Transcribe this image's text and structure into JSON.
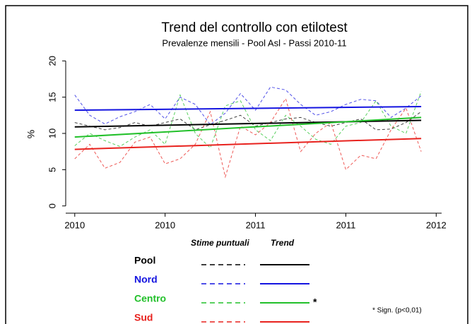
{
  "chart_data": {
    "type": "line",
    "title": "Trend del controllo con etilotest",
    "subtitle": "Prevalenze mensili - Pool Asl - Passi 2010-11",
    "y_label": "%",
    "x": [
      2010,
      2010.083,
      2010.167,
      2010.25,
      2010.333,
      2010.417,
      2010.5,
      2010.583,
      2010.667,
      2010.75,
      2010.833,
      2010.917,
      2011,
      2011.083,
      2011.167,
      2011.25,
      2011.333,
      2011.417,
      2011.5,
      2011.583,
      2011.667,
      2011.75,
      2011.833,
      2011.917
    ],
    "trend_x": [
      2010,
      2011.917
    ],
    "xlim": [
      2009.95,
      2012.03
    ],
    "xticks": [
      2010,
      {
        "value": 2010.5,
        "label": "2010"
      },
      2011,
      {
        "value": 2011.5,
        "label": "2011"
      },
      2012
    ],
    "ylim": [
      -1,
      21
    ],
    "yticks": [
      0,
      5,
      10,
      15,
      20
    ],
    "legend_headers": [
      "Stime puntuali",
      "Trend"
    ],
    "footnote": "* Sign. (p<0,01)",
    "series": [
      {
        "name": "Pool",
        "color": "#000000",
        "values": [
          11.5,
          11,
          10.5,
          10.8,
          11.5,
          11,
          11.5,
          12,
          10.5,
          11.2,
          11.8,
          12.5,
          11,
          11.5,
          12,
          12.2,
          11.5,
          11,
          11.5,
          12,
          10.5,
          10.6,
          11.5,
          13
        ],
        "trend": [
          10.9,
          11.8
        ]
      },
      {
        "name": "Nord",
        "color": "#1414e0",
        "values": [
          15.3,
          12.5,
          11.3,
          12.3,
          13,
          14,
          12,
          15,
          14,
          11.2,
          12.8,
          15.5,
          13.2,
          16.4,
          16,
          14,
          12.5,
          13,
          14,
          14.7,
          14.5,
          12.2,
          13.5,
          15.2
        ],
        "trend": [
          13.2,
          13.7
        ]
      },
      {
        "name": "Centro",
        "color": "#22c02a",
        "values": [
          8.3,
          10,
          9,
          8.2,
          9.5,
          10.5,
          8.5,
          15.3,
          10,
          8,
          13.8,
          14.5,
          10.5,
          9,
          12.5,
          11,
          9.2,
          8.5,
          11,
          11.5,
          14.5,
          11,
          10,
          15.8
        ],
        "trend": [
          9.5,
          12.2
        ],
        "note": "*"
      },
      {
        "name": "Sud",
        "color": "#e8221e",
        "values": [
          6.5,
          8.5,
          5.2,
          6,
          8.8,
          9.5,
          5.8,
          6.5,
          8.5,
          13,
          4,
          11,
          9.8,
          11.5,
          14.8,
          7.5,
          10,
          11.5,
          5,
          7,
          6.5,
          10.5,
          13.5,
          7.5
        ],
        "trend": [
          7.8,
          9.3
        ]
      }
    ]
  }
}
